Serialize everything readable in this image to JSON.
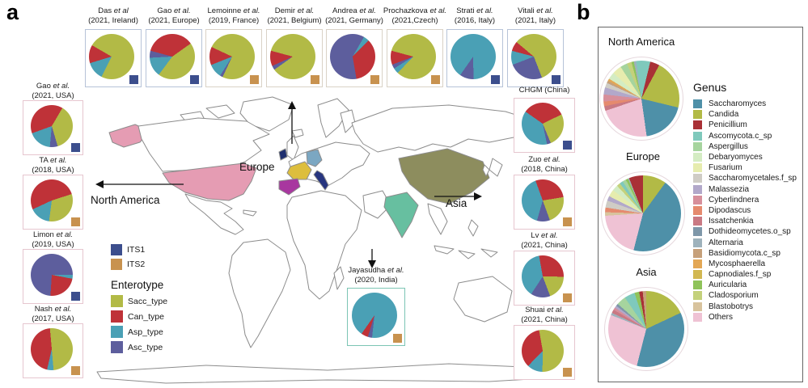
{
  "palette": {
    "ITS1": "#3c4e8d",
    "ITS2": "#c8924f",
    "Sacc_type": "#b2ba46",
    "Can_type": "#bf3238",
    "Asp_type": "#4aa0b5",
    "Asc_type": "#5d5e9d",
    "Saccharomyces": "#4e90a8",
    "Candida": "#b2ba46",
    "Penicillium": "#a93136",
    "Ascomycota.c_sp": "#7fc9bc",
    "Aspergillus": "#a6d49e",
    "Debaryomyces": "#d4ecc3",
    "Fusarium": "#e6ecae",
    "Saccharomycetales.f_sp": "#cfccc5",
    "Malassezia": "#b2a8ca",
    "Cyberlindnera": "#d78f9b",
    "Dipodascus": "#e58a6e",
    "Issatchenkia": "#c97983",
    "Dothideomycetes.o_sp": "#7e97a9",
    "Alternaria": "#9eb2bc",
    "Basidiomycota.c_sp": "#c6a07a",
    "Mycosphaerella": "#e3a755",
    "Capnodiales.f_sp": "#d2b852",
    "Auricularia": "#8fc35a",
    "Cladosporium": "#c4d17b",
    "Blastobotrys": "#d8c39d",
    "Others": "#efc2d4",
    "map_usa": "#e59cb3",
    "map_france": "#ddbe3d",
    "map_germany": "#7ba7c2",
    "map_spain": "#a8379f",
    "map_italy": "#27357f",
    "map_ireland": "#1f2f6e",
    "map_china": "#8d8d5e",
    "map_india": "#67bfa0"
  },
  "panel_a": {
    "label": "a",
    "map_labels": {
      "europe": "Europe",
      "north_america": "North America",
      "asia": "Asia"
    },
    "legend": {
      "its": [
        {
          "key": "ITS1",
          "label": "ITS1"
        },
        {
          "key": "ITS2",
          "label": "ITS2"
        }
      ],
      "enterotype_title": "Enterotype",
      "enterotype": [
        {
          "key": "Sacc_type",
          "label": "Sacc_type"
        },
        {
          "key": "Can_type",
          "label": "Can_type"
        },
        {
          "key": "Asp_type",
          "label": "Asp_type"
        },
        {
          "key": "Asc_type",
          "label": "Asc_type"
        }
      ]
    },
    "studies": [
      {
        "id": "das",
        "line1": "Das",
        "etal": "et al",
        "line2": "(2021, Ireland)",
        "its": "ITS1",
        "border": "#b6c3d8"
      },
      {
        "id": "gao_eu",
        "line1": "Gao",
        "etal": "et al.",
        "line2": "(2021, Europe)",
        "its": "ITS1",
        "border": "#b6c3d8"
      },
      {
        "id": "lemoinne",
        "line1": "Lemoinne",
        "etal": "et al.",
        "line2": "(2019, France)",
        "its": "ITS2",
        "border": "#d9d2c6"
      },
      {
        "id": "demir",
        "line1": "Demir",
        "etal": "et al.",
        "line2": "(2021, Belgium)",
        "its": "ITS2",
        "border": "#d9d2c6"
      },
      {
        "id": "andrea",
        "line1": "Andrea",
        "etal": "et al.",
        "line2": "(2021, Germany)",
        "its": "ITS2",
        "border": "#d9d2c6"
      },
      {
        "id": "prochazkova",
        "line1": "Prochazkova",
        "etal": "et al.",
        "line2": "(2021,Czech)",
        "its": "ITS2",
        "border": "#d9d2c6"
      },
      {
        "id": "strati",
        "line1": "Strati",
        "etal": "et al.",
        "line2": "(2016, Italy)",
        "its": "ITS1",
        "border": "#b6c3d8"
      },
      {
        "id": "vitali",
        "line1": "Vitali",
        "etal": "et al.",
        "line2": "(2021, Italy)",
        "its": "ITS1",
        "border": "#b6c3d8"
      },
      {
        "id": "gao_usa",
        "line1": "Gao",
        "etal": "et al.",
        "line2": "(2021, USA)",
        "its": "ITS1",
        "border": "#e6c6cf"
      },
      {
        "id": "ta",
        "line1": "TA",
        "etal": "et al.",
        "line2": "(2018, USA)",
        "its": "ITS2",
        "border": "#e6c6cf"
      },
      {
        "id": "limon",
        "line1": "Limon",
        "etal": "et al.",
        "line2": "(2019, USA)",
        "its": "ITS1",
        "border": "#e6c6cf"
      },
      {
        "id": "nash",
        "line1": "Nash",
        "etal": "et al.",
        "line2": "(2017, USA)",
        "its": "ITS2",
        "border": "#e6c6cf"
      },
      {
        "id": "chgm",
        "line1": "CHGM (China)",
        "etal": "",
        "line2": "",
        "its": "ITS1",
        "border": "#e6c6cf"
      },
      {
        "id": "zuo",
        "line1": "Zuo",
        "etal": "et al.",
        "line2": "(2018, China)",
        "its": "ITS2",
        "border": "#e6c6cf"
      },
      {
        "id": "lv",
        "line1": "Lv",
        "etal": "et al.",
        "line2": "(2021, China)",
        "its": "ITS2",
        "border": "#e6c6cf"
      },
      {
        "id": "shuai",
        "line1": "Shuai",
        "etal": "et al.",
        "line2": "(2021, China)",
        "its": "ITS2",
        "border": "#e6c6cf"
      },
      {
        "id": "jayasudha",
        "line1": "Jayasudha",
        "etal": "et al.",
        "line2": "(2020, India)",
        "its": "ITS2",
        "border": "#7cc5b4"
      }
    ]
  },
  "panel_b": {
    "label": "b",
    "genus_title": "Genus",
    "genus": [
      "Saccharomyces",
      "Candida",
      "Penicillium",
      "Ascomycota.c_sp",
      "Aspergillus",
      "Debaryomyces",
      "Fusarium",
      "Saccharomycetales.f_sp",
      "Malassezia",
      "Cyberlindnera",
      "Dipodascus",
      "Issatchenkia",
      "Dothideomycetes.o_sp",
      "Alternaria",
      "Basidiomycota.c_sp",
      "Mycosphaerella",
      "Capnodiales.f_sp",
      "Auricularia",
      "Cladosporium",
      "Blastobotrys",
      "Others"
    ],
    "regions": [
      {
        "id": "na_region",
        "title": "North America"
      },
      {
        "id": "europe_region",
        "title": "Europe"
      },
      {
        "id": "asia_region",
        "title": "Asia"
      }
    ]
  },
  "chart_data": [
    {
      "id": "das",
      "type": "pie",
      "title": "Das et al (2021, Ireland)",
      "its": "ITS1",
      "labels": [
        "Sacc_type",
        "Asp_type",
        "Can_type"
      ],
      "values": [
        74,
        13,
        13
      ],
      "start": 300
    },
    {
      "id": "gao_eu",
      "type": "pie",
      "title": "Gao et al. (2021, Europe)",
      "its": "ITS1",
      "labels": [
        "Can_type",
        "Sacc_type",
        "Asp_type",
        "Asc_type"
      ],
      "values": [
        36,
        45,
        14,
        5
      ],
      "start": 285
    },
    {
      "id": "lemoinne",
      "type": "pie",
      "title": "Lemoinne et al. (2019, France)",
      "its": "ITS2",
      "labels": [
        "Sacc_type",
        "Asc_type",
        "Asp_type",
        "Can_type"
      ],
      "values": [
        75,
        2,
        10,
        13
      ],
      "start": 295
    },
    {
      "id": "demir",
      "type": "pie",
      "title": "Demir et al. (2021, Belgium)",
      "its": "ITS2",
      "labels": [
        "Sacc_type",
        "Asc_type",
        "Can_type"
      ],
      "values": [
        86,
        3,
        11
      ],
      "start": 285
    },
    {
      "id": "andrea",
      "type": "pie",
      "title": "Andrea et al. (2021, Germany)",
      "its": "ITS2",
      "labels": [
        "Asp_type",
        "Can_type",
        "Asc_type"
      ],
      "values": [
        4,
        35,
        61
      ],
      "start": 30
    },
    {
      "id": "prochazkova",
      "type": "pie",
      "title": "Prochazkova et al. (2021,Czech)",
      "its": "ITS2",
      "labels": [
        "Sacc_type",
        "Asp_type",
        "Asc_type",
        "Can_type"
      ],
      "values": [
        83,
        4,
        3,
        10
      ],
      "start": 285
    },
    {
      "id": "strati",
      "type": "pie",
      "title": "Strati et al. (2016, Italy)",
      "its": "ITS1",
      "labels": [
        "Asp_type",
        "Asc_type"
      ],
      "values": [
        90,
        10
      ],
      "start": 215
    },
    {
      "id": "vitali",
      "type": "pie",
      "title": "Vitali et al. (2021, Italy)",
      "its": "ITS1",
      "labels": [
        "Sacc_type",
        "Asc_type",
        "Asp_type",
        "Can_type"
      ],
      "values": [
        58,
        25,
        10,
        7
      ],
      "start": 310
    },
    {
      "id": "gao_usa",
      "type": "pie",
      "title": "Gao et al. (2021, USA)",
      "its": "ITS1",
      "labels": [
        "Can_type",
        "Sacc_type",
        "Asc_type",
        "Asp_type"
      ],
      "values": [
        39,
        37,
        6,
        18
      ],
      "start": 250
    },
    {
      "id": "ta",
      "type": "pie",
      "title": "TA et al. (2018, USA)",
      "its": "ITS2",
      "labels": [
        "Can_type",
        "Sacc_type",
        "Asp_type"
      ],
      "values": [
        52,
        32,
        16
      ],
      "start": 245
    },
    {
      "id": "limon",
      "type": "pie",
      "title": "Limon et al. (2019, USA)",
      "its": "ITS1",
      "labels": [
        "Asp_type",
        "Can_type",
        "Asc_type"
      ],
      "values": [
        3,
        23,
        74
      ],
      "start": 90
    },
    {
      "id": "nash",
      "type": "pie",
      "title": "Nash et al. (2017, USA)",
      "its": "ITS2",
      "labels": [
        "Sacc_type",
        "Asp_type",
        "Can_type"
      ],
      "values": [
        50,
        5,
        45
      ],
      "start": 355
    },
    {
      "id": "chgm",
      "type": "pie",
      "title": "CHGM (China)",
      "its": "ITS1",
      "labels": [
        "Can_type",
        "Sacc_type",
        "Asc_type",
        "Asp_type"
      ],
      "values": [
        33,
        26,
        3,
        38
      ],
      "start": 305
    },
    {
      "id": "zuo",
      "type": "pie",
      "title": "Zuo et al. (2018, China)",
      "its": "ITS2",
      "labels": [
        "Can_type",
        "Sacc_type",
        "Asc_type",
        "Asp_type"
      ],
      "values": [
        28,
        22,
        10,
        40
      ],
      "start": 340
    },
    {
      "id": "lv",
      "type": "pie",
      "title": "Lv et al. (2021, China)",
      "its": "ITS2",
      "labels": [
        "Can_type",
        "Sacc_type",
        "Asc_type",
        "Asp_type"
      ],
      "values": [
        28,
        19,
        15,
        38
      ],
      "start": 350
    },
    {
      "id": "shuai",
      "type": "pie",
      "title": "Shuai et al. (2021, China)",
      "its": "ITS2",
      "labels": [
        "Sacc_type",
        "Asp_type",
        "Can_type"
      ],
      "values": [
        53,
        12,
        35
      ],
      "start": 350
    },
    {
      "id": "jayasudha",
      "type": "pie",
      "title": "Jayasudha et al. (2020, India)",
      "its": "ITS2",
      "labels": [
        "Asp_type",
        "Asc_type",
        "Can_type"
      ],
      "values": [
        92,
        3,
        5
      ],
      "start": 215
    },
    {
      "id": "na_region",
      "type": "pie",
      "title": "North America",
      "labels": [
        "Ascomycota.c_sp",
        "Penicillium",
        "Candida",
        "Saccharomyces",
        "Others",
        "Issatchenkia",
        "Dipodascus",
        "Cyberlindnera",
        "Malassezia",
        "Saccharomycetales.f_sp",
        "Basidiomycota.c_sp",
        "Mycosphaerella",
        "Debaryomyces",
        "Fusarium",
        "Aspergillus",
        "Cladosporium",
        "Auricularia",
        "Alternaria"
      ],
      "values": [
        6,
        4,
        21,
        19,
        22,
        2,
        2,
        3,
        3,
        2,
        1,
        1,
        3,
        4,
        3,
        2,
        1,
        1
      ],
      "start": 352
    },
    {
      "id": "europe_region",
      "type": "pie",
      "title": "Europe",
      "labels": [
        "Candida",
        "Saccharomyces",
        "Others",
        "Blastobotrys",
        "Dipodascus",
        "Saccharomycetales.f_sp",
        "Malassezia",
        "Fusarium",
        "Debaryomyces",
        "Cladosporium",
        "Ascomycota.c_sp",
        "Aspergillus",
        "Auricularia",
        "Alternaria",
        "Penicillium"
      ],
      "values": [
        10,
        44,
        20,
        1.5,
        2,
        3,
        2,
        3,
        2.5,
        1.5,
        1.5,
        1.5,
        1,
        0.5,
        6
      ],
      "start": 0
    },
    {
      "id": "asia_region",
      "type": "pie",
      "title": "Asia",
      "labels": [
        "Candida",
        "Saccharomyces",
        "Others",
        "Alternaria",
        "Issatchenkia",
        "Cyberlindnera",
        "Malassezia",
        "Dothideomycetes.o_sp",
        "Aspergillus",
        "Ascomycota.c_sp",
        "Auricularia",
        "Penicillium",
        "Basidiomycota.c_sp"
      ],
      "values": [
        18,
        36,
        27,
        1,
        1.5,
        1,
        1,
        1,
        4,
        4.5,
        2,
        1.5,
        1.5
      ],
      "start": 0
    }
  ]
}
